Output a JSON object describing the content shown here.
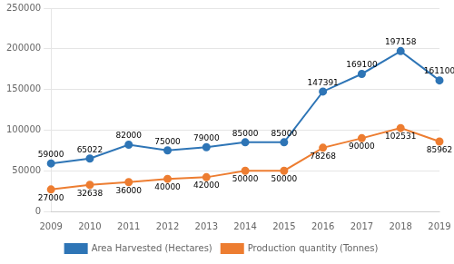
{
  "chart_data": {
    "type": "line",
    "categories": [
      "2009",
      "2010",
      "2011",
      "2012",
      "2013",
      "2014",
      "2015",
      "2016",
      "2017",
      "2018",
      "2019"
    ],
    "series": [
      {
        "name": "Area Harvested (Hectares)",
        "color": "#2E75B6",
        "marker": "circle",
        "line_style": "solid",
        "values": [
          59000,
          65022,
          82000,
          75000,
          79000,
          85000,
          85000,
          147391,
          169100,
          197158,
          161100
        ]
      },
      {
        "name": "Production quantity (Tonnes)",
        "color": "#ED7D31",
        "marker": "circle",
        "line_style": "solid",
        "values": [
          27000,
          32638,
          36000,
          40000,
          42000,
          50000,
          50000,
          78268,
          90000,
          102531,
          85962
        ]
      }
    ],
    "ylim": [
      0,
      250000
    ],
    "yticks": [
      0,
      50000,
      100000,
      150000,
      200000,
      250000
    ],
    "grid": true,
    "legend": "bottom",
    "data_labels": true
  }
}
